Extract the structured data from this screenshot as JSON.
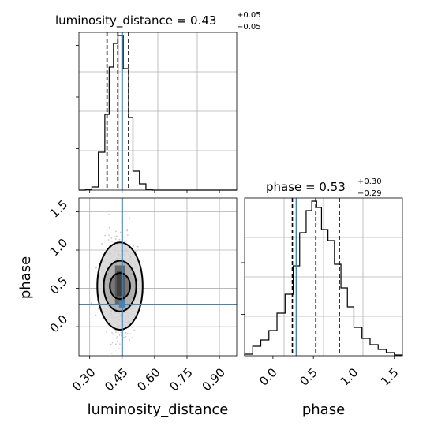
{
  "chart_data": {
    "type": "corner",
    "parameters": [
      "luminosity_distance",
      "phase"
    ],
    "titles": {
      "luminosity_distance": {
        "name": "luminosity_distance",
        "median": "0.43",
        "plus": "+0.05",
        "minus": "−0.05"
      },
      "phase": {
        "name": "phase",
        "median": "0.53",
        "plus": "+0.30",
        "minus": "−0.29"
      }
    },
    "truths": {
      "luminosity_distance": 0.45,
      "phase": 0.29
    },
    "colors": {
      "truth": "#4682b4",
      "hist": "#000000",
      "grid": "#b0b0b0",
      "quantile": "#000000"
    },
    "panels": [
      {
        "id": "hist-luminosity_distance",
        "type": "histogram",
        "xlim": [
          0.25,
          0.98
        ],
        "ylim": [
          0,
          1.0
        ],
        "quantiles": [
          0.38,
          0.43,
          0.48
        ],
        "bin_edges": [
          0.25,
          0.28,
          0.31,
          0.34,
          0.37,
          0.39,
          0.41,
          0.43,
          0.455,
          0.48,
          0.5,
          0.53,
          0.56,
          0.59,
          0.62,
          0.98
        ],
        "counts": [
          0,
          0.005,
          0.02,
          0.24,
          0.48,
          0.78,
          0.93,
          0.98,
          0.77,
          0.46,
          0.12,
          0.04,
          0.005,
          0,
          0
        ],
        "grid": true
      },
      {
        "id": "hist-phase",
        "type": "histogram",
        "xlim": [
          -0.35,
          1.6
        ],
        "ylim": [
          0,
          1.0
        ],
        "quantiles": [
          0.24,
          0.53,
          0.82
        ],
        "bin_edges": [
          -0.35,
          -0.25,
          -0.15,
          -0.05,
          0.05,
          0.15,
          0.25,
          0.33,
          0.41,
          0.48,
          0.54,
          0.6,
          0.68,
          0.76,
          0.84,
          0.92,
          1.0,
          1.1,
          1.2,
          1.3,
          1.4,
          1.5,
          1.6
        ],
        "counts": [
          0.01,
          0.06,
          0.1,
          0.16,
          0.27,
          0.39,
          0.57,
          0.78,
          0.92,
          0.98,
          0.94,
          0.8,
          0.73,
          0.58,
          0.43,
          0.31,
          0.18,
          0.11,
          0.07,
          0.04,
          0.02,
          0.005
        ],
        "grid": true
      },
      {
        "id": "scatter-2d",
        "type": "contour",
        "xlim": [
          0.25,
          0.98
        ],
        "ylim": [
          -0.38,
          1.68
        ],
        "xlabel": "luminosity_distance",
        "ylabel": "phase",
        "xticks": [
          "0.30",
          "0.45",
          "0.60",
          "0.75",
          "0.90"
        ],
        "yticks": [
          "0.0",
          "0.5",
          "1.0",
          "1.5"
        ],
        "center": [
          0.44,
          0.53
        ],
        "contour_levels": [
          {
            "rx": 0.047,
            "ry": 0.17
          },
          {
            "rx": 0.075,
            "ry": 0.33
          },
          {
            "rx": 0.105,
            "ry": 0.57
          }
        ]
      }
    ],
    "phase_xticks": [
      "0.0",
      "0.5",
      "1.0",
      "1.5"
    ],
    "phase_xlabel": "phase"
  }
}
